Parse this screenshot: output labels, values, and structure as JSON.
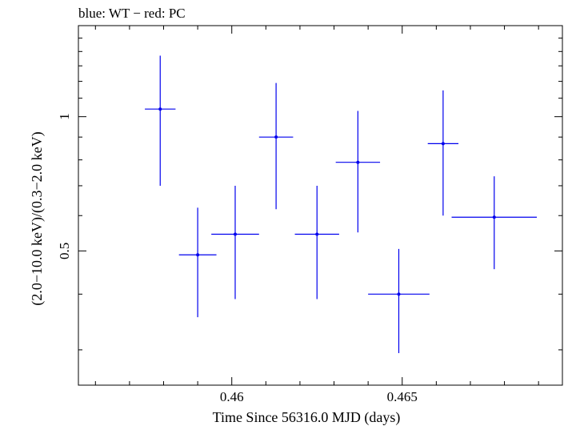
{
  "chart_data": {
    "type": "scatter",
    "title": "blue: WT − red: PC",
    "xlabel": "Time Since 56316.0 MJD (days)",
    "ylabel": "(2.0−10.0 keV)/(0.3−2.0 keV)",
    "xlim": [
      0.4555,
      0.4697
    ],
    "ylim": [
      0.25,
      1.6
    ],
    "x_ticks": [
      {
        "value": 0.46,
        "label": "0.46"
      },
      {
        "value": 0.465,
        "label": "0.465"
      }
    ],
    "y_ticks": [
      {
        "value": 0.5,
        "label": "0.5"
      },
      {
        "value": 1,
        "label": "1"
      }
    ],
    "series": [
      {
        "name": "WT",
        "color": "#0000ee",
        "points": [
          {
            "x": 0.4579,
            "xerr": 0.00045,
            "y": 1.04,
            "ylo": 0.7,
            "yhi": 1.37
          },
          {
            "x": 0.459,
            "xerr": 0.00055,
            "y": 0.49,
            "ylo": 0.355,
            "yhi": 0.625
          },
          {
            "x": 0.4601,
            "xerr": 0.0007,
            "y": 0.545,
            "ylo": 0.39,
            "yhi": 0.7
          },
          {
            "x": 0.4613,
            "xerr": 0.0005,
            "y": 0.9,
            "ylo": 0.62,
            "yhi": 1.19
          },
          {
            "x": 0.4625,
            "xerr": 0.00065,
            "y": 0.545,
            "ylo": 0.39,
            "yhi": 0.7
          },
          {
            "x": 0.4637,
            "xerr": 0.00065,
            "y": 0.79,
            "ylo": 0.55,
            "yhi": 1.03
          },
          {
            "x": 0.4649,
            "xerr": 0.0009,
            "y": 0.4,
            "ylo": 0.295,
            "yhi": 0.505
          },
          {
            "x": 0.4662,
            "xerr": 0.00045,
            "y": 0.87,
            "ylo": 0.6,
            "yhi": 1.145
          },
          {
            "x": 0.4677,
            "xerr": 0.00125,
            "y": 0.595,
            "ylo": 0.455,
            "yhi": 0.735
          }
        ]
      }
    ]
  }
}
